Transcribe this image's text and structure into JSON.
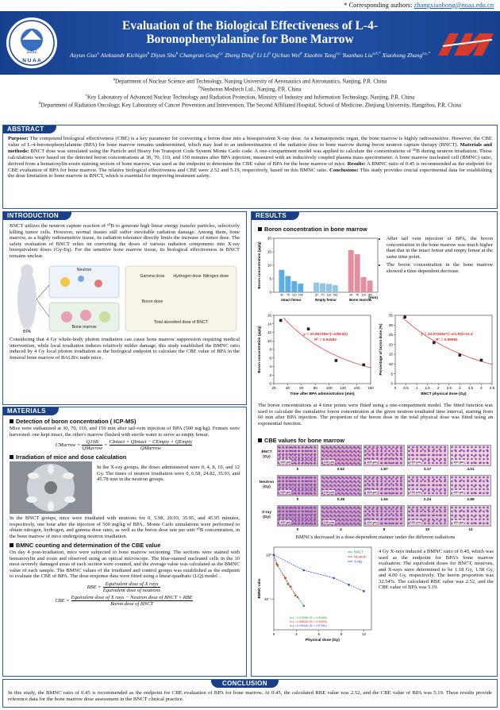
{
  "corresponding": {
    "label": "* Corresponding authors: ",
    "email": "zhangxiaohong@nuaa.edu.cn"
  },
  "header": {
    "title": "Evaluation of the Biological Effectiveness of L-4-Boronophenylalanine for Bone Marrow",
    "logo_year": "1952",
    "logo_name": "N U A A",
    "authors": [
      {
        "name": "Aoyun Guo",
        "sup": "a"
      },
      {
        "name": "Aleksandr Kichigin",
        "sup": "b"
      },
      {
        "name": "Diyun Shu",
        "sup": "b"
      },
      {
        "name": "Changran Geng",
        "sup": "a,c"
      },
      {
        "name": "Zheng Ding",
        "sup": "a"
      },
      {
        "name": "Li Li",
        "sup": "b"
      },
      {
        "name": "Qichun Wei",
        "sup": "d"
      },
      {
        "name": "Xiaobin Tang",
        "sup": "a,c"
      },
      {
        "name": "Yuanhao Liu",
        "sup": "a,b,*"
      },
      {
        "name": "Xiaohong Zhang",
        "sup": "a,c,*"
      }
    ]
  },
  "affiliations": [
    {
      "sup": "a",
      "text": "Department of Nuclear Science and Technology, Nanjing University of Aeronautics and Astronautics, Nanjing, P.R. China"
    },
    {
      "sup": "b",
      "text": "Neuboron Medtech Ltd., Nanjing, P.R. China"
    },
    {
      "sup": "c",
      "text": "Key Laboratory of Advanced Nuclear Technology and Radiation Protection, Ministry of Industry and Information Technology, Nanjing, P.R. China"
    },
    {
      "sup": "d",
      "text": "Department of Radiation Oncology, Key Laboratory of Cancer Prevention and Intervention, The Second Affiliated Hospital, School of Medicine, Zhejiang University, Hangzhou, P.R. China"
    }
  ],
  "abstract": {
    "heading": "ABSTRACT",
    "parts": [
      {
        "label": "Purpose:",
        "text": " The compound biological effectiveness (CBE) is a key parameter for converting a boron dose into a bioequivalent X-ray dose. As a hematopoietic organ, the bone marrow is highly radiosensitive. However, the CBE value of L-4-boronophenylalanine (BPA) for bone marrow remains undetermined, which may lead to an underestimation of the radiation dose to bone marrow during boron neutron capture therapy (BNCT). "
      },
      {
        "label": "Materials and methods:",
        "text": " BNCT dose was simulated using the Particle and Heavy Ion Transport Code System Monte Carlo code. A one-compartment model was applied to calculate the concentrations of ¹⁰B during neutron irradiation. These calculations were based on the detected boron concentrations at 30, 70, 110, and 150 minutes after BPA injection, measured with an inductively coupled plasma mass spectrometer. A bone marrow nucleated cell (BMNC) ratio, derived from a hematoxylin-eosin staining section of bone marrow, was used as the endpoint to determine the CBE value of BPA for the bone marrow of mice. "
      },
      {
        "label": "Results:",
        "text": " A BMNC ratio of 0.45 is recommended as the endpoint for CBE evaluation of BPA for bone marrow. The relative biological effectiveness and CBE were 2.52 and 5.19, respectively, based on this BMNC ratio. "
      },
      {
        "label": "Conclusions:",
        "text": " This study provides crucial experimental data for establishing the dose limitation to bone marrow in BNCT, which is essential for improving treatment safety."
      }
    ]
  },
  "introduction": {
    "heading": "INTRODUCTION",
    "p1": "BNCT utilizes the neutron capture reaction of ¹⁰B to generate high linear energy transfer particles, selectively killing tumor cells. However, normal tissues still suffer inevitable radiation damage. Among them, bone marrow, as a highly radiosensitive tissue, its radiation tolerance directly limits the increase of tumor dose. The safety evaluation of BNCT relies on converting the doses of various radiation components into X-ray bioequivalent doses (Gy-Eq). For the sensitive bone marrow tissue, its biological effectiveness in BNCT remains unclear.",
    "diagram": [
      "BPA",
      "Neutron",
      "Gamma dose",
      "Hydrogen dose",
      "Nitrogen dose",
      "Boron dose",
      "Total absorbed dose of BNCT",
      "Bone marrow"
    ],
    "p2": "Considering that 4 Gy whole-body photon irradiation can cause bone marrow suppression requiring medical intervention, while local irradiation induces relatively milder damage, this study established the BMNC ratio induced by 4 Gy local photon irradiation as the biological endpoint to calculate the CBE value of BPA in the femoral bone marrow of BALB/c nude mice."
  },
  "materials": {
    "heading": "MATERIALS",
    "s1_title": "Detection of boron concentration ( ICP-MS)",
    "s1_text": "Mice were euthanized at 30, 70, 110, and 150 min after tail-vein injection of BPA (500 mg/kg). Femurs were harvested: one kept intact, the other's marrow flushed with sterile water to serve as empty femur.",
    "eq1": {
      "lhs": "CMarrow =",
      "f1_num": "Q10B",
      "f1_den": "QMarrow",
      "mid": "=",
      "f2_num": "CIntact × QIntact − CEmpty × QEmpty",
      "f2_den": "QMarrow"
    },
    "s2_title": "Irradiation of mice and dose calculation",
    "s2_side": "In the X-ray groups, the doses administered were 0, 4, 8, 10, and 12 Gy. The times of neutron irradiation were 0, 6.58, 24.82, 35.93, and 45.78 min in the neutron groups.",
    "s2_text": "In the BNCT groups, mice were irradiated with neutrons for 0, 5.98, 20.93, 35.95, and 45.95 minutes, respectively, one hour after the injection of 500 mg/kg of BPA.. Monte Carlo simulations were performed to obtain nitrogen, hydrogen, and gamma dose rates, as well as the boron dose rate per unit ¹⁰B concentration, in the bone marrow of mice undergoing neutron irradiation.",
    "s3_title": "BMNC counting and determination of the CBE value",
    "s3_text": "On day 4 post-irradiation, mice were subjected to bone marrow sectioning. The sections were stained with hematoxylin and eosin and observed using an optical microscope. The blue-stained nucleated cells in the 10 most severely damaged areas of each section were counted, and the average value was calculated as the BMNC value of each sample. The BMNC values of the irradiated and control groups was established as the endpoint to evaluate the CBE of BPA. The dose-response data were fitted using a linear-quadratic (LQ) model .",
    "eq2": {
      "lhs": "RBE =",
      "num": "Equivalent dose of X rays",
      "den": "Equivalent dose of neutrons"
    },
    "eq3": {
      "lhs": "CBE =",
      "num": "Equivalent dose of X rays − Neutron dose of BNCT × RBE",
      "den": "Boron dose of BNCT"
    }
  },
  "results": {
    "heading": "RESULTS",
    "s1_title": "Boron concentration in bone marrow",
    "bullets": [
      "After tail vein injection of BPA, the boron concentration in the bone marrow was much higher than that in the intact femur and empty femur at the same time point.",
      "The boron concentration in the bone marrow showed a time-dependent decrease."
    ],
    "para1": "The boron concentrations at 4 time points were fitted using a one-compartment model. The fitted function was used to calculate the cumulative boron concentration at the given neutron-irradiated time interval, starting from 60 min after BPA injection. The proportion of the boron dose in the total physical dose was fitted using an exponential function.",
    "s2_title": "CBE values for bone marrow",
    "histology": {
      "scale_bar": "100 μm",
      "rows": [
        {
          "label": "BNCT (Gy)",
          "doses": [
            "0",
            "0.52",
            "1.87",
            "3.17",
            "4.01"
          ]
        },
        {
          "label": "Neutron (Gy)",
          "doses": [
            "0",
            "0.39",
            "1.54",
            "2.24",
            "2.88"
          ]
        },
        {
          "label": "X-ray (Gy)",
          "doses": [
            "0",
            "4",
            "8",
            "10",
            "12"
          ]
        }
      ]
    },
    "caption": "BMNCs decreased in a dose-dependent manner under the different radiations",
    "para2": "4 Gy X-rays induced a BMNC ratio of 0.45, which was used as the endpoint for BPA's bone marrow evaluation. The equivalent doses for BNCT, neutrons, and X-rays were determined to be 1.18 Gy, 1.58 Gy, and 4.00 Gy, respectively. The boron proportion was 32.54%. The calculated RBE value was 2.52, and the CBE value of BPA was 5.19."
  },
  "conclusion": {
    "heading": "CONCLUSION",
    "text": "In this study, the BMNC ratio of 0.45 is recommended as the endpoint for CBE evaluation of BPA for bone marrow. At 0.45, the calculated RBE value was 2.52, and the CBE value of BPA was 5.19. These results provide reference data for the bone marrow dose assessment in the BNCT clinical practice."
  },
  "chart_data": [
    {
      "type": "bar",
      "ylabel": "Boron concentration (μg/g)",
      "xlabel": "(min)",
      "categories": [
        "30",
        "70",
        "110",
        "150"
      ],
      "series": [
        {
          "name": "Intact femur",
          "color": "#5dade2",
          "values": [
            8.3,
            6.0,
            4.1,
            3.2
          ]
        },
        {
          "name": "Empty femur",
          "color": "#8fc6ea",
          "values": [
            3.6,
            3.3,
            3.1,
            2.6
          ]
        },
        {
          "name": "Bone marrow",
          "color": "#e48fa0",
          "values": [
            15.6,
            14.1,
            5.6,
            4.3
          ]
        }
      ],
      "ylim": [
        0,
        20
      ],
      "yticks": [
        0,
        5,
        10,
        15,
        20
      ]
    },
    {
      "type": "scatter",
      "xlabel": "Time after BPA administration (min)",
      "ylabel": "Boron concentration (μg/g)",
      "x": [
        30,
        70,
        110,
        150
      ],
      "values": [
        14.8,
        12.8,
        5.4,
        4.4
      ],
      "color": "#222222",
      "fit_color": "#e03030",
      "equation": "y = 20.85739e^(−x/86.82)",
      "r2": "R² = 0.94082",
      "xlim": [
        20,
        160
      ],
      "xticks": [
        20,
        40,
        60,
        80,
        100,
        120,
        140,
        160
      ],
      "ylim": [
        0,
        16
      ],
      "yticks": [
        0,
        2,
        4,
        6,
        8,
        10,
        12,
        14,
        16
      ]
    },
    {
      "type": "scatter",
      "xlabel": "BNCT physical dose (Gy)",
      "ylabel": "Percentage of boron dose (%)",
      "x": [
        0.45,
        1.8,
        3.0,
        4.0
      ],
      "values": [
        34.1,
        21.0,
        14.6,
        12.0
      ],
      "color": "#222222",
      "fit_color": "#e03030",
      "equation": "y = 24.07263e^(−x/1.83)+10.4",
      "r2": "R² = 0.99991",
      "xlim": [
        0,
        4.5
      ],
      "xticks": [
        0,
        0.5,
        1,
        1.5,
        2,
        2.5,
        3,
        3.5,
        4,
        4.5
      ],
      "ylim": [
        0,
        35
      ],
      "yticks": [
        0,
        5,
        10,
        15,
        20,
        25,
        30,
        35
      ]
    },
    {
      "type": "line",
      "log_y": true,
      "xlabel": "Physical dose (Gy)",
      "ylabel": "BMNC ratio",
      "xlim": [
        0,
        13
      ],
      "xticks": [
        0,
        3,
        6,
        9,
        12
      ],
      "ylim": [
        0.02,
        1.5
      ],
      "yticks": [
        {
          "value": 1,
          "label": "10⁰"
        },
        {
          "value": 0.1,
          "label": "10⁻¹"
        }
      ],
      "series": [
        {
          "name": "BNCT",
          "color": "#2e9d3a",
          "x": [
            0,
            0.52,
            1.87,
            3.17,
            4.01
          ],
          "values": [
            1,
            0.58,
            0.22,
            0.11,
            0.07
          ],
          "fit": "ln y = 0.67595D (R² = 0.99486)"
        },
        {
          "name": "Neutron",
          "color": "#e03030",
          "x": [
            0,
            0.39,
            1.54,
            2.24,
            2.88
          ],
          "values": [
            1,
            0.62,
            0.3,
            0.19,
            0.12
          ],
          "fit": "ln y = 0.58803D (R² = 0.99935)"
        },
        {
          "name": "X-ray",
          "color": "#2a4fd0",
          "x": [
            0,
            4,
            8,
            10,
            12
          ],
          "values": [
            1,
            0.45,
            0.3,
            0.21,
            0.15
          ],
          "fit": "ln y = 0.19016D (R² = 0.97561)"
        }
      ]
    }
  ]
}
